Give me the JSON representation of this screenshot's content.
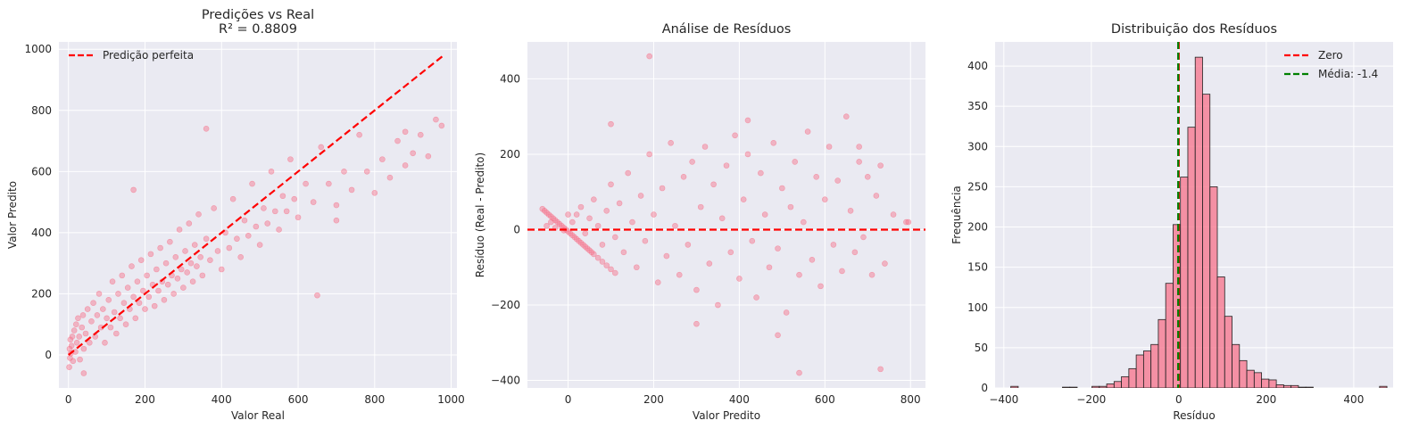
{
  "colors": {
    "panel_bg": "#eaeaf2",
    "grid": "#ffffff",
    "points": "#f77189",
    "bars": "#f77189",
    "bar_edge": "#222222",
    "ref_line": "#ff0000",
    "mean_line": "#008000"
  },
  "chart_data": [
    {
      "type": "scatter",
      "title": "Predições vs Real",
      "subtitle": "R² = 0.8809",
      "xlabel": "Valor Real",
      "ylabel": "Valor Predito",
      "xlim": [
        -25,
        1015
      ],
      "ylim": [
        -108,
        1024
      ],
      "xticks": [
        0,
        200,
        400,
        600,
        800,
        1000
      ],
      "yticks": [
        0,
        200,
        400,
        600,
        800,
        1000
      ],
      "xtick_labels": [
        "0",
        "200",
        "400",
        "600",
        "800",
        "1000"
      ],
      "ytick_labels": [
        "0",
        "200",
        "400",
        "600",
        "800",
        "1000"
      ],
      "grid": true,
      "legend": {
        "position": "top-left",
        "items": [
          {
            "label": "Predição perfeita",
            "style": "dashed",
            "color": "#ff0000"
          }
        ]
      },
      "reference_line": {
        "x": [
          0,
          977
        ],
        "y": [
          0,
          977
        ],
        "style": "dashed"
      },
      "points": [
        [
          2,
          -40
        ],
        [
          3,
          20
        ],
        [
          4,
          -10
        ],
        [
          5,
          50
        ],
        [
          6,
          5
        ],
        [
          8,
          30
        ],
        [
          10,
          60
        ],
        [
          12,
          -20
        ],
        [
          15,
          80
        ],
        [
          18,
          10
        ],
        [
          20,
          100
        ],
        [
          22,
          40
        ],
        [
          25,
          120
        ],
        [
          28,
          60
        ],
        [
          30,
          -15
        ],
        [
          35,
          90
        ],
        [
          38,
          130
        ],
        [
          40,
          20
        ],
        [
          45,
          70
        ],
        [
          50,
          150
        ],
        [
          55,
          40
        ],
        [
          60,
          110
        ],
        [
          65,
          170
        ],
        [
          70,
          60
        ],
        [
          75,
          130
        ],
        [
          80,
          200
        ],
        [
          85,
          90
        ],
        [
          90,
          150
        ],
        [
          95,
          40
        ],
        [
          100,
          120
        ],
        [
          105,
          180
        ],
        [
          110,
          90
        ],
        [
          115,
          240
        ],
        [
          120,
          140
        ],
        [
          125,
          70
        ],
        [
          130,
          200
        ],
        [
          135,
          120
        ],
        [
          140,
          260
        ],
        [
          145,
          170
        ],
        [
          150,
          100
        ],
        [
          155,
          220
        ],
        [
          160,
          150
        ],
        [
          165,
          290
        ],
        [
          170,
          190
        ],
        [
          175,
          120
        ],
        [
          180,
          240
        ],
        [
          185,
          170
        ],
        [
          190,
          310
        ],
        [
          195,
          210
        ],
        [
          200,
          150
        ],
        [
          205,
          260
        ],
        [
          210,
          190
        ],
        [
          215,
          330
        ],
        [
          220,
          230
        ],
        [
          225,
          160
        ],
        [
          230,
          280
        ],
        [
          235,
          210
        ],
        [
          240,
          350
        ],
        [
          245,
          240
        ],
        [
          250,
          180
        ],
        [
          255,
          300
        ],
        [
          260,
          230
        ],
        [
          265,
          370
        ],
        [
          270,
          260
        ],
        [
          275,
          200
        ],
        [
          280,
          320
        ],
        [
          285,
          250
        ],
        [
          290,
          410
        ],
        [
          295,
          280
        ],
        [
          300,
          220
        ],
        [
          305,
          340
        ],
        [
          310,
          270
        ],
        [
          315,
          430
        ],
        [
          320,
          300
        ],
        [
          325,
          240
        ],
        [
          330,
          360
        ],
        [
          335,
          290
        ],
        [
          340,
          460
        ],
        [
          345,
          320
        ],
        [
          350,
          260
        ],
        [
          360,
          380
        ],
        [
          370,
          310
        ],
        [
          380,
          480
        ],
        [
          390,
          340
        ],
        [
          400,
          280
        ],
        [
          410,
          400
        ],
        [
          420,
          350
        ],
        [
          430,
          510
        ],
        [
          440,
          380
        ],
        [
          450,
          320
        ],
        [
          460,
          440
        ],
        [
          470,
          390
        ],
        [
          480,
          560
        ],
        [
          490,
          420
        ],
        [
          500,
          360
        ],
        [
          510,
          480
        ],
        [
          520,
          430
        ],
        [
          530,
          600
        ],
        [
          540,
          470
        ],
        [
          550,
          410
        ],
        [
          560,
          520
        ],
        [
          570,
          470
        ],
        [
          580,
          640
        ],
        [
          590,
          510
        ],
        [
          600,
          450
        ],
        [
          620,
          560
        ],
        [
          640,
          500
        ],
        [
          660,
          680
        ],
        [
          680,
          560
        ],
        [
          700,
          490
        ],
        [
          720,
          600
        ],
        [
          740,
          540
        ],
        [
          760,
          720
        ],
        [
          780,
          600
        ],
        [
          800,
          530
        ],
        [
          820,
          640
        ],
        [
          840,
          580
        ],
        [
          860,
          700
        ],
        [
          880,
          620
        ],
        [
          900,
          660
        ],
        [
          920,
          720
        ],
        [
          940,
          650
        ],
        [
          960,
          770
        ],
        [
          975,
          750
        ],
        [
          360,
          740
        ],
        [
          170,
          540
        ],
        [
          650,
          195
        ],
        [
          700,
          440
        ],
        [
          880,
          730
        ],
        [
          40,
          -60
        ]
      ]
    },
    {
      "type": "scatter",
      "title": "Análise de Resíduos",
      "xlabel": "Valor Predito",
      "ylabel": "Resíduo (Real - Predito)",
      "xlim": [
        -95,
        835
      ],
      "ylim": [
        -420,
        498
      ],
      "xticks": [
        0,
        200,
        400,
        600,
        800
      ],
      "yticks": [
        -400,
        -200,
        0,
        200,
        400
      ],
      "xtick_labels": [
        "0",
        "200",
        "400",
        "600",
        "800"
      ],
      "ytick_labels": [
        "−400",
        "−200",
        "0",
        "200",
        "400"
      ],
      "grid": true,
      "reference_line": {
        "y": 0,
        "style": "dashed"
      },
      "points": [
        [
          -60,
          55
        ],
        [
          -55,
          50
        ],
        [
          -50,
          45
        ],
        [
          -45,
          40
        ],
        [
          -40,
          35
        ],
        [
          -35,
          30
        ],
        [
          -30,
          25
        ],
        [
          -25,
          20
        ],
        [
          -20,
          15
        ],
        [
          -15,
          10
        ],
        [
          -10,
          5
        ],
        [
          -5,
          0
        ],
        [
          0,
          -5
        ],
        [
          5,
          -10
        ],
        [
          10,
          -15
        ],
        [
          15,
          -20
        ],
        [
          20,
          -25
        ],
        [
          25,
          -30
        ],
        [
          30,
          -35
        ],
        [
          35,
          -40
        ],
        [
          40,
          -45
        ],
        [
          45,
          -50
        ],
        [
          50,
          -55
        ],
        [
          55,
          -60
        ],
        [
          60,
          -65
        ],
        [
          70,
          -75
        ],
        [
          80,
          -85
        ],
        [
          90,
          -95
        ],
        [
          100,
          -105
        ],
        [
          110,
          -115
        ],
        [
          -50,
          10
        ],
        [
          -30,
          5
        ],
        [
          -10,
          -2
        ],
        [
          10,
          20
        ],
        [
          20,
          40
        ],
        [
          30,
          60
        ],
        [
          40,
          -10
        ],
        [
          50,
          30
        ],
        [
          60,
          80
        ],
        [
          70,
          10
        ],
        [
          80,
          -40
        ],
        [
          90,
          50
        ],
        [
          100,
          120
        ],
        [
          110,
          -20
        ],
        [
          120,
          70
        ],
        [
          130,
          -60
        ],
        [
          140,
          150
        ],
        [
          150,
          20
        ],
        [
          160,
          -100
        ],
        [
          170,
          90
        ],
        [
          180,
          -30
        ],
        [
          190,
          200
        ],
        [
          200,
          40
        ],
        [
          210,
          -140
        ],
        [
          220,
          110
        ],
        [
          230,
          -70
        ],
        [
          240,
          230
        ],
        [
          250,
          10
        ],
        [
          260,
          -120
        ],
        [
          270,
          140
        ],
        [
          280,
          -40
        ],
        [
          290,
          180
        ],
        [
          300,
          -160
        ],
        [
          310,
          60
        ],
        [
          320,
          220
        ],
        [
          330,
          -90
        ],
        [
          340,
          120
        ],
        [
          350,
          -200
        ],
        [
          360,
          30
        ],
        [
          370,
          170
        ],
        [
          380,
          -60
        ],
        [
          390,
          250
        ],
        [
          400,
          -130
        ],
        [
          410,
          80
        ],
        [
          420,
          200
        ],
        [
          430,
          -30
        ],
        [
          440,
          -180
        ],
        [
          450,
          150
        ],
        [
          460,
          40
        ],
        [
          470,
          -100
        ],
        [
          480,
          230
        ],
        [
          490,
          -50
        ],
        [
          500,
          110
        ],
        [
          510,
          -220
        ],
        [
          520,
          60
        ],
        [
          530,
          180
        ],
        [
          540,
          -120
        ],
        [
          550,
          20
        ],
        [
          560,
          260
        ],
        [
          570,
          -80
        ],
        [
          580,
          140
        ],
        [
          590,
          -150
        ],
        [
          600,
          80
        ],
        [
          610,
          220
        ],
        [
          620,
          -40
        ],
        [
          630,
          130
        ],
        [
          640,
          -110
        ],
        [
          650,
          300
        ],
        [
          660,
          50
        ],
        [
          670,
          -60
        ],
        [
          680,
          180
        ],
        [
          690,
          -20
        ],
        [
          700,
          140
        ],
        [
          710,
          -120
        ],
        [
          720,
          90
        ],
        [
          730,
          170
        ],
        [
          740,
          -90
        ],
        [
          760,
          40
        ],
        [
          790,
          20
        ],
        [
          795,
          20
        ],
        [
          190,
          460
        ],
        [
          540,
          -380
        ],
        [
          730,
          -370
        ],
        [
          490,
          -280
        ],
        [
          300,
          -250
        ],
        [
          100,
          280
        ],
        [
          420,
          290
        ],
        [
          680,
          220
        ],
        [
          -40,
          20
        ],
        [
          0,
          40
        ]
      ]
    },
    {
      "type": "bar",
      "title": "Distribuição dos Resíduos",
      "xlabel": "Resíduo",
      "ylabel": "Frequência",
      "xlim": [
        -420,
        490
      ],
      "ylim": [
        0,
        430
      ],
      "xticks": [
        -400,
        -200,
        0,
        200,
        400
      ],
      "yticks": [
        0,
        50,
        100,
        150,
        200,
        250,
        300,
        350,
        400
      ],
      "xtick_labels": [
        "−400",
        "−200",
        "0",
        "200",
        "400"
      ],
      "ytick_labels": [
        "0",
        "50",
        "100",
        "150",
        "200",
        "250",
        "300",
        "350",
        "400"
      ],
      "grid": true,
      "bin_start": -384,
      "bin_width": 16.86,
      "values": [
        2,
        0,
        0,
        0,
        0,
        0,
        0,
        1,
        1,
        0,
        0,
        2,
        2,
        5,
        8,
        14,
        24,
        41,
        46,
        54,
        85,
        130,
        203,
        262,
        324,
        411,
        365,
        250,
        138,
        89,
        54,
        34,
        22,
        19,
        11,
        10,
        4,
        3,
        3,
        1,
        1,
        0,
        0,
        0,
        0,
        0,
        0,
        0,
        0,
        0,
        2
      ],
      "legend": {
        "position": "top-right",
        "items": [
          {
            "label": "Zero",
            "style": "dashed",
            "color": "#ff0000"
          },
          {
            "label": "Média: -1.4",
            "style": "dashed",
            "color": "#008000"
          }
        ]
      },
      "reference_lines": [
        {
          "x": 0,
          "color": "#ff0000"
        },
        {
          "x": -1.4,
          "color": "#008000"
        }
      ]
    }
  ]
}
